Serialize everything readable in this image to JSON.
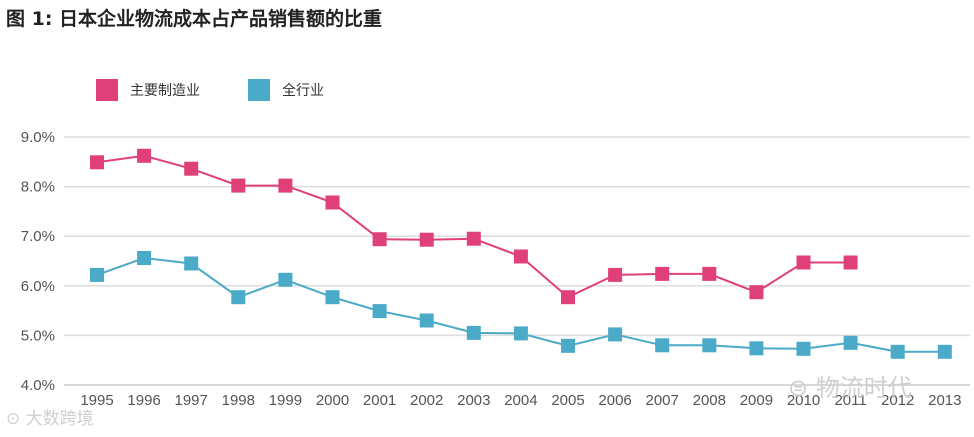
{
  "chart_data": {
    "type": "line",
    "title": "图 1: 日本企业物流成本占产品销售额的比重",
    "xlabel": "",
    "ylabel": "",
    "categories": [
      "1995",
      "1996",
      "1997",
      "1998",
      "1999",
      "2000",
      "2001",
      "2002",
      "2003",
      "2004",
      "2005",
      "2006",
      "2007",
      "2008",
      "2009",
      "2010",
      "2011",
      "2012",
      "2013"
    ],
    "yticks": [
      "4.0%",
      "5.0%",
      "6.0%",
      "7.0%",
      "8.0%",
      "9.0%"
    ],
    "ylim": [
      4.0,
      9.0
    ],
    "grid": true,
    "legend_position": "top-left",
    "series": [
      {
        "name": "主要制造业",
        "color": "#e0407a",
        "values": [
          8.49,
          8.62,
          8.36,
          8.02,
          8.02,
          7.68,
          6.94,
          6.93,
          6.95,
          6.59,
          5.77,
          6.22,
          6.24,
          6.24,
          5.87,
          6.47,
          6.47,
          null,
          null
        ]
      },
      {
        "name": "全行业",
        "color": "#4aaac8",
        "values": [
          6.22,
          6.56,
          6.45,
          5.77,
          6.12,
          5.77,
          5.49,
          5.3,
          5.05,
          5.04,
          4.79,
          5.02,
          4.8,
          4.8,
          4.74,
          4.73,
          4.85,
          4.67,
          4.67
        ]
      }
    ]
  },
  "watermarks": {
    "right": "物流时代",
    "left": "大数跨境"
  },
  "colors": {
    "grid": "#dddddd",
    "axis_text": "#555555"
  }
}
